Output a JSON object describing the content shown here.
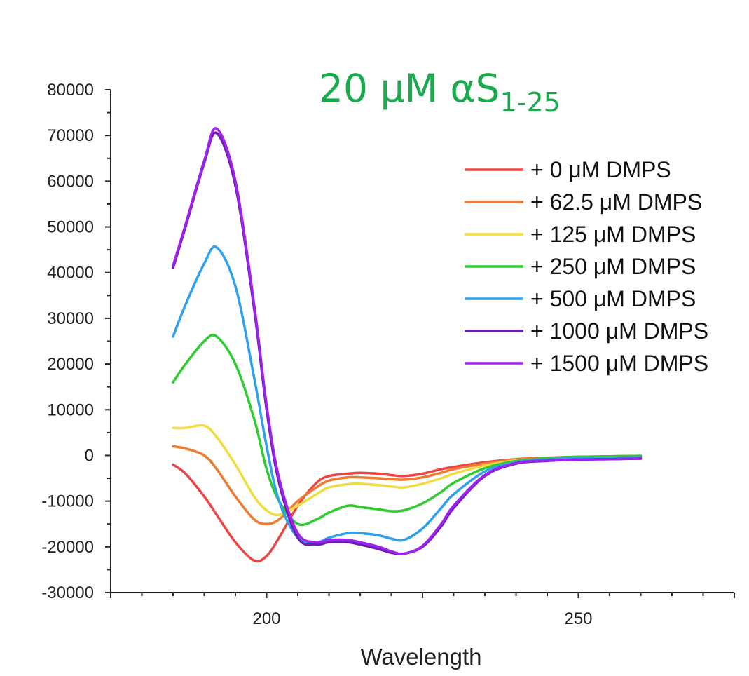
{
  "chart_data": {
    "type": "line",
    "title": "20 μM αS",
    "title_subscript": "1-25",
    "title_color": "#1aaa4e",
    "xlabel": "Wavelength",
    "ylabel": "",
    "xlim": [
      175,
      275
    ],
    "ylim": [
      -30000,
      80000
    ],
    "x_ticks": [
      200,
      250
    ],
    "y_ticks": [
      -30000,
      -20000,
      -10000,
      0,
      10000,
      20000,
      30000,
      40000,
      50000,
      60000,
      70000,
      80000
    ],
    "y_tick_labels": [
      "-30000",
      "-20000",
      "-10000",
      "0",
      "10000",
      "20000",
      "30000",
      "40000",
      "50000",
      "60000",
      "70000",
      "80000"
    ],
    "grid": false,
    "legend_position": "top-right",
    "x": [
      185,
      187,
      190,
      192,
      195,
      198,
      200,
      202,
      205,
      208,
      210,
      213,
      215,
      218,
      220,
      222,
      225,
      228,
      230,
      235,
      240,
      245,
      250,
      255,
      260
    ],
    "series": [
      {
        "name": "+ 0 μM DMPS",
        "color": "#ee4444",
        "values": [
          -2000,
          -4000,
          -9000,
          -13000,
          -19000,
          -23000,
          -22000,
          -18000,
          -11000,
          -6000,
          -4500,
          -4000,
          -3800,
          -4000,
          -4300,
          -4500,
          -4000,
          -3000,
          -2500,
          -1500,
          -800,
          -500,
          -300,
          -200,
          -100
        ]
      },
      {
        "name": "+ 62.5 μM DMPS",
        "color": "#f07a30",
        "values": [
          2000,
          1500,
          0,
          -3000,
          -9000,
          -14000,
          -15000,
          -14000,
          -10000,
          -7000,
          -5500,
          -4800,
          -4800,
          -5000,
          -5200,
          -5300,
          -4800,
          -3800,
          -3000,
          -1800,
          -900,
          -600,
          -400,
          -300,
          -200
        ]
      },
      {
        "name": "+ 125 μM DMPS",
        "color": "#f0dc40",
        "values": [
          6000,
          6000,
          6500,
          4000,
          -2000,
          -9000,
          -12000,
          -13000,
          -11000,
          -8500,
          -7000,
          -6300,
          -6200,
          -6500,
          -6800,
          -7000,
          -6200,
          -5000,
          -4000,
          -2200,
          -1100,
          -700,
          -500,
          -300,
          -200
        ]
      },
      {
        "name": "+ 250 μM DMPS",
        "color": "#2ecc2e",
        "values": [
          16000,
          20000,
          25000,
          26000,
          20000,
          8000,
          -3000,
          -10000,
          -15000,
          -14000,
          -12500,
          -11000,
          -11300,
          -11800,
          -12200,
          -12000,
          -10500,
          -8000,
          -6000,
          -2800,
          -1200,
          -600,
          -300,
          -200,
          -100
        ]
      },
      {
        "name": "+ 500 μM DMPS",
        "color": "#2ea0ee",
        "values": [
          26000,
          33000,
          42000,
          45500,
          37000,
          17000,
          2000,
          -10000,
          -18000,
          -19000,
          -18000,
          -17000,
          -17000,
          -17500,
          -18200,
          -18500,
          -16000,
          -11500,
          -8500,
          -3500,
          -1500,
          -800,
          -600,
          -500,
          -400
        ]
      },
      {
        "name": "+ 1000 μM DMPS",
        "color": "#6a1fb0",
        "values": [
          41000,
          50000,
          64000,
          70500,
          59000,
          32000,
          10000,
          -6000,
          -18000,
          -19500,
          -19000,
          -19000,
          -19500,
          -20500,
          -21300,
          -21500,
          -20000,
          -15500,
          -11500,
          -4500,
          -1800,
          -1200,
          -900,
          -800,
          -700
        ]
      },
      {
        "name": "+ 1500 μM DMPS",
        "color": "#a020f0",
        "values": [
          41500,
          50500,
          64500,
          71500,
          60000,
          33000,
          11000,
          -5000,
          -17000,
          -19000,
          -18500,
          -18500,
          -19000,
          -20000,
          -21000,
          -21500,
          -19800,
          -15000,
          -11000,
          -4300,
          -1700,
          -1100,
          -900,
          -800,
          -700
        ]
      }
    ]
  }
}
